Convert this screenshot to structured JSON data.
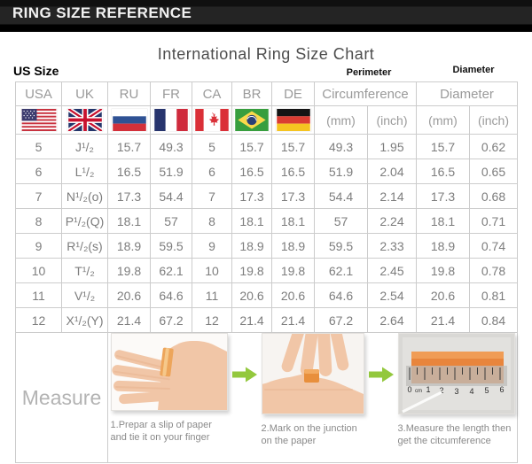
{
  "header": {
    "title": "RING SIZE REFERENCE"
  },
  "chart": {
    "title": "International Ring Size Chart",
    "us_size_label": "US Size",
    "perimeter_label": "Perimeter",
    "diameter_label": "Diameter"
  },
  "table": {
    "country_columns": [
      {
        "label": "USA",
        "flag": "usa-flag-icon"
      },
      {
        "label": "UK",
        "flag": "uk-flag-icon"
      },
      {
        "label": "RU",
        "flag": "ru-flag-icon"
      },
      {
        "label": "FR",
        "flag": "fr-flag-icon"
      },
      {
        "label": "CA",
        "flag": "ca-flag-icon"
      },
      {
        "label": "BR",
        "flag": "br-flag-icon"
      },
      {
        "label": "DE",
        "flag": "de-flag-icon"
      }
    ],
    "measure_columns": [
      {
        "label": "Circumference",
        "sub": [
          "(mm)",
          "(inch)"
        ]
      },
      {
        "label": "Diameter",
        "sub": [
          "(mm)",
          "(inch)"
        ]
      }
    ]
  },
  "measure": {
    "label": "Measure",
    "steps": [
      {
        "icon": "hand-with-paper-slip-illustration",
        "caption": "1.Prepar a slip of paper and tie it on your finger"
      },
      {
        "icon": "marking-paper-illustration",
        "caption": "2.Mark on the junction on the paper"
      },
      {
        "icon": "ruler-measuring-illustration",
        "caption": "3.Measure the length then get the citcumference"
      }
    ],
    "arrow_icon": "green-arrow-right-icon",
    "ruler_ticks": [
      "0",
      "cm",
      "1",
      "2",
      "3",
      "4",
      "5",
      "6"
    ]
  },
  "colors": {
    "accent_green": "#93c83d",
    "paper_orange": "#e8853c",
    "header_bg": "#1a1a1a",
    "grid_border": "#cccccc"
  },
  "chart_data": {
    "type": "table",
    "title": "International Ring Size Chart",
    "columns": [
      "USA",
      "UK",
      "RU",
      "FR",
      "CA",
      "BR",
      "DE",
      "Circumference (mm)",
      "Circumference (inch)",
      "Diameter (mm)",
      "Diameter (inch)"
    ],
    "rows": [
      [
        "5",
        "J¹/₂",
        "15.7",
        "49.3",
        "5",
        "15.7",
        "15.7",
        "49.3",
        "1.95",
        "15.7",
        "0.62"
      ],
      [
        "6",
        "L¹/₂",
        "16.5",
        "51.9",
        "6",
        "16.5",
        "16.5",
        "51.9",
        "2.04",
        "16.5",
        "0.65"
      ],
      [
        "7",
        "N¹/₂(o)",
        "17.3",
        "54.4",
        "7",
        "17.3",
        "17.3",
        "54.4",
        "2.14",
        "17.3",
        "0.68"
      ],
      [
        "8",
        "P¹/₂(Q)",
        "18.1",
        "57",
        "8",
        "18.1",
        "18.1",
        "57",
        "2.24",
        "18.1",
        "0.71"
      ],
      [
        "9",
        "R¹/₂(s)",
        "18.9",
        "59.5",
        "9",
        "18.9",
        "18.9",
        "59.5",
        "2.33",
        "18.9",
        "0.74"
      ],
      [
        "10",
        "T¹/₂",
        "19.8",
        "62.1",
        "10",
        "19.8",
        "19.8",
        "62.1",
        "2.45",
        "19.8",
        "0.78"
      ],
      [
        "11",
        "V¹/₂",
        "20.6",
        "64.6",
        "11",
        "20.6",
        "20.6",
        "64.6",
        "2.54",
        "20.6",
        "0.81"
      ],
      [
        "12",
        "X¹/₂(Y)",
        "21.4",
        "67.2",
        "12",
        "21.4",
        "21.4",
        "67.2",
        "2.64",
        "21.4",
        "0.84"
      ]
    ]
  }
}
